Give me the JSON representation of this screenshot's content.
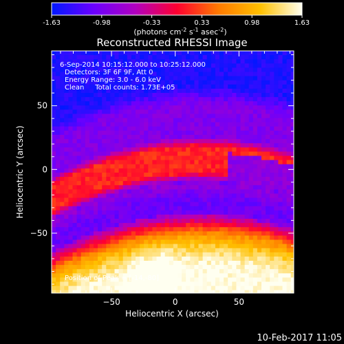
{
  "colorbar": {
    "ticks": [
      "-1.63",
      "-0.98",
      "-0.33",
      "0.33",
      "0.98",
      "1.63"
    ],
    "unit_label": "(photons cm",
    "unit_parts": [
      "(photons cm",
      "-2",
      " s",
      "-1",
      " asec",
      "-2",
      ")"
    ],
    "range": [
      -1.63,
      1.63
    ],
    "stops": [
      "#0018ff",
      "#6a00ff",
      "#b000c0",
      "#ff0030",
      "#ff7a00",
      "#ffc000",
      "#fffff0"
    ]
  },
  "chart_data": {
    "type": "heatmap",
    "title": "Reconstructed RHESSI Image",
    "xlabel": "Heliocentric X (arcsec)",
    "ylabel": "Heliocentric Y (arcsec)",
    "xlim": [
      -97,
      93
    ],
    "ylim": [
      -97,
      93
    ],
    "xticks": [
      -50,
      0,
      50
    ],
    "yticks": [
      -50,
      0,
      50
    ],
    "annotations": [
      "6-Sep-2014 10:15:12.000 to 10:25:12.000",
      "Detectors: 3F 6F 9F, Att 0",
      "Energy Range: 3.0 - 6.0 keV",
      "Clean     Total counts: 1.73E+05"
    ],
    "peak_label": "Position of Peak = [-14,-80]",
    "peak_position": [
      -14,
      -80
    ],
    "detectors": [
      "3F",
      "6F",
      "9F"
    ],
    "attenuator": 0,
    "energy_range_kev": [
      3.0,
      6.0
    ],
    "method": "Clean",
    "total_counts": 173000,
    "time_range": [
      "6-Sep-2014 10:15:12.000",
      "10:25:12.000"
    ],
    "bands": [
      {
        "name": "blue",
        "y_center": 72,
        "level": 0.05
      },
      {
        "name": "purple",
        "y_center": 38,
        "level": 0.22
      },
      {
        "name": "red",
        "y_center": 5,
        "level": 0.55
      },
      {
        "name": "dark",
        "y_center": -20,
        "level": 0.18
      },
      {
        "name": "bright",
        "y_center": -75,
        "level": 0.95
      }
    ]
  },
  "footer": {
    "timestamp": "10-Feb-2017 11:05"
  }
}
